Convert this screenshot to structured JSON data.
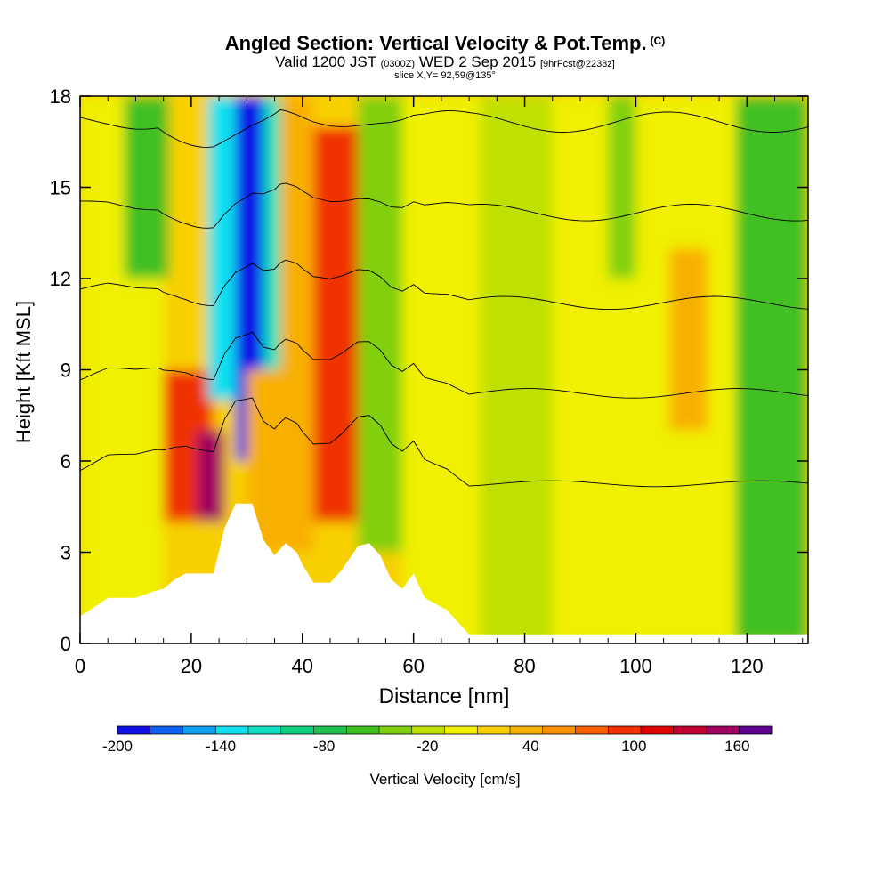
{
  "header": {
    "title": "Angled Section: Vertical Velocity & Pot.Temp.",
    "title_unit": "(C)",
    "valid_prefix": "Valid 1200 JST",
    "valid_utc": "(0300Z)",
    "valid_date": "WED 2 Sep 2015",
    "forecast_note": "[9hrFcst@2238z]",
    "slice": "slice X,Y= 92,59@135°"
  },
  "chart_data": {
    "type": "heatmap",
    "xlabel": "Distance [nm]",
    "ylabel": "Height [Kft MSL]",
    "xlim": [
      0,
      131
    ],
    "ylim": [
      0,
      18
    ],
    "x_ticks": [
      0,
      20,
      40,
      60,
      80,
      100,
      120
    ],
    "y_ticks": [
      0,
      3,
      6,
      9,
      12,
      15,
      18
    ],
    "colorbar": {
      "label": "Vertical Velocity [cm/s]",
      "min": -200,
      "max": 180,
      "step": 20,
      "tick_labels": [
        "-200",
        "-140",
        "-80",
        "-20",
        "40",
        "100",
        "160"
      ],
      "colors": [
        "#1010e8",
        "#1060f0",
        "#10a0f0",
        "#10e0f0",
        "#10e0c0",
        "#10d080",
        "#20c050",
        "#40c020",
        "#80d010",
        "#c0e000",
        "#f0f000",
        "#f8d000",
        "#f8b000",
        "#f89000",
        "#f86000",
        "#f03000",
        "#e00000",
        "#c00030",
        "#a00060",
        "#600090"
      ]
    },
    "cells": [
      {
        "x0": 0,
        "x1": 15,
        "y0": 0,
        "y1": 18,
        "w": 15
      },
      {
        "x0": 15,
        "x1": 24,
        "y0": 4,
        "y1": 9,
        "w": 110
      },
      {
        "x0": 21,
        "x1": 26,
        "y0": 4,
        "y1": 7,
        "w": 165
      },
      {
        "x0": 8,
        "x1": 16,
        "y0": 12,
        "y1": 18,
        "w": -55
      },
      {
        "x0": 16,
        "x1": 23,
        "y0": 9,
        "y1": 18,
        "w": 35
      },
      {
        "x0": 23,
        "x1": 28,
        "y0": 8,
        "y1": 18,
        "w": -125
      },
      {
        "x0": 28,
        "x1": 33,
        "y0": 6,
        "y1": 18,
        "w": -185
      },
      {
        "x0": 33,
        "x1": 38,
        "y0": 9,
        "y1": 18,
        "w": -105
      },
      {
        "x0": 30,
        "x1": 36,
        "y0": 3,
        "y1": 9,
        "w": 55
      },
      {
        "x0": 36,
        "x1": 42,
        "y0": 3,
        "y1": 18,
        "w": 45
      },
      {
        "x0": 42,
        "x1": 50,
        "y0": 4,
        "y1": 17,
        "w": 115
      },
      {
        "x0": 50,
        "x1": 58,
        "y0": 3,
        "y1": 18,
        "w": -35
      },
      {
        "x0": 58,
        "x1": 72,
        "y0": 0,
        "y1": 18,
        "w": 5
      },
      {
        "x0": 72,
        "x1": 85,
        "y0": 0,
        "y1": 18,
        "w": -15
      },
      {
        "x0": 85,
        "x1": 100,
        "y0": 0,
        "y1": 18,
        "w": 5
      },
      {
        "x0": 95,
        "x1": 100,
        "y0": 12,
        "y1": 18,
        "w": -30
      },
      {
        "x0": 100,
        "x1": 118,
        "y0": 0,
        "y1": 18,
        "w": 10
      },
      {
        "x0": 106,
        "x1": 113,
        "y0": 7,
        "y1": 13,
        "w": 40
      },
      {
        "x0": 118,
        "x1": 131,
        "y0": 0,
        "y1": 18,
        "w": -45
      }
    ],
    "terrain": [
      [
        0,
        0.9
      ],
      [
        1,
        1.0
      ],
      [
        5,
        1.5
      ],
      [
        10,
        1.5
      ],
      [
        13,
        1.7
      ],
      [
        15,
        1.8
      ],
      [
        17,
        2.1
      ],
      [
        19,
        2.3
      ],
      [
        22,
        2.3
      ],
      [
        24,
        2.3
      ],
      [
        26,
        3.8
      ],
      [
        28,
        4.6
      ],
      [
        31,
        4.6
      ],
      [
        33,
        3.4
      ],
      [
        35,
        2.9
      ],
      [
        37,
        3.3
      ],
      [
        39,
        3.0
      ],
      [
        40,
        2.6
      ],
      [
        42,
        2.0
      ],
      [
        45,
        2.0
      ],
      [
        47,
        2.4
      ],
      [
        50,
        3.2
      ],
      [
        52,
        3.3
      ],
      [
        54,
        2.9
      ],
      [
        56,
        2.1
      ],
      [
        58,
        1.8
      ],
      [
        60,
        2.3
      ],
      [
        62,
        1.5
      ],
      [
        66,
        1.1
      ],
      [
        68,
        0.7
      ],
      [
        70,
        0.3
      ],
      [
        72,
        0.3
      ],
      [
        131,
        0.3
      ]
    ],
    "isentropes": {
      "levels": [
        5,
        8,
        11,
        14,
        17,
        20,
        23,
        26,
        29,
        32,
        35,
        38,
        41,
        44,
        47,
        50,
        53,
        56,
        59,
        62,
        65,
        68,
        71,
        74,
        77,
        80,
        83,
        86
      ],
      "label_interval": 3
    }
  }
}
